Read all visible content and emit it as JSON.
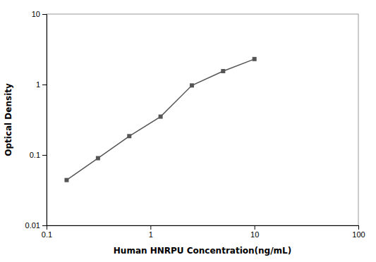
{
  "chart_data": {
    "type": "line",
    "x": [
      0.156,
      0.3125,
      0.625,
      1.25,
      2.5,
      5.0,
      10.0
    ],
    "values": [
      0.044,
      0.09,
      0.185,
      0.35,
      0.97,
      1.55,
      2.3
    ],
    "xlabel": "Human HNRPU Concentration(ng/mL)",
    "ylabel": "Optical Density",
    "xlim": [
      0.1,
      100
    ],
    "ylim": [
      0.01,
      10
    ],
    "xticks": [
      0.1,
      1,
      10,
      100
    ],
    "yticks": [
      0.01,
      0.1,
      1,
      10
    ],
    "log": true,
    "grid": false,
    "color": "#555555",
    "marker": "square",
    "line_style": "solid"
  }
}
